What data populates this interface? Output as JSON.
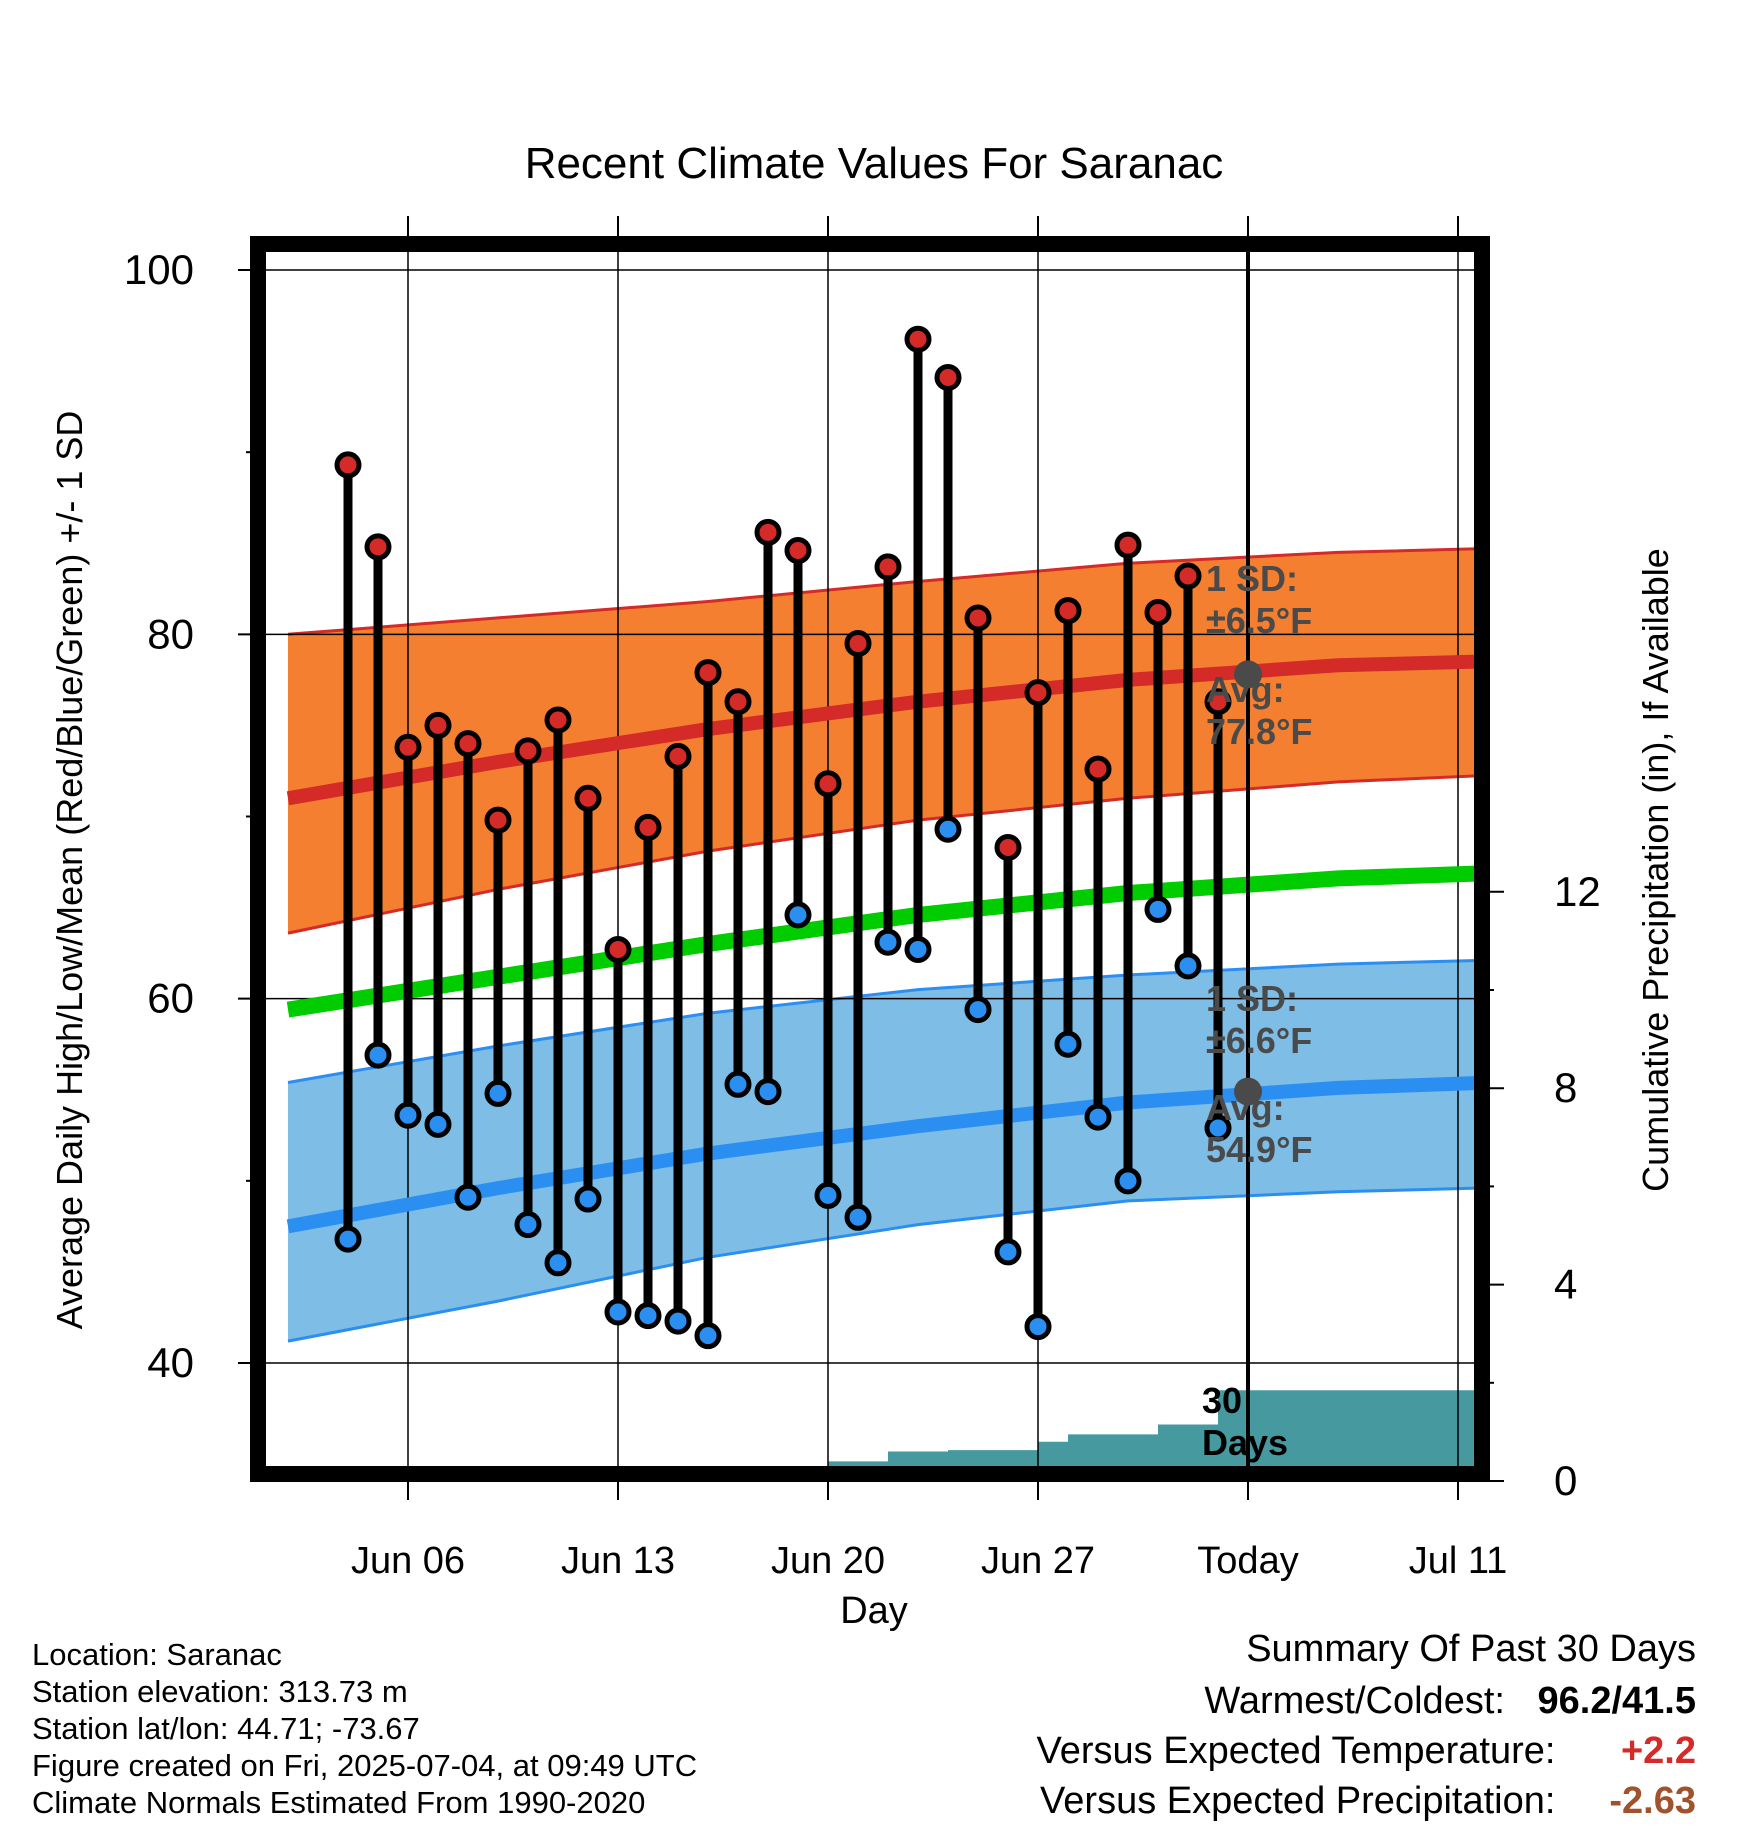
{
  "chart_data": {
    "type": "line",
    "title": "Recent Climate Values For Saranac",
    "xlabel": "Day",
    "ylabel": "Average Daily High/Low/Mean (Red/Blue/Green) +/- 1 SD",
    "y2label": "Cumulative Precipitation (in), If Available",
    "ylim": [
      33,
      102
    ],
    "y2lim": [
      0,
      24.4
    ],
    "yticks": [
      "100",
      "80",
      "60",
      "40"
    ],
    "y2ticks": [
      "12",
      "8",
      "4",
      "0"
    ],
    "xticks": [
      "Jun 06",
      "Jun 13",
      "Jun 20",
      "Jun 27",
      "Today",
      "Jul 11"
    ],
    "x_dates": [
      "2025-06-02",
      "2025-07-14"
    ],
    "today": "2025-07-04",
    "grid": true,
    "observed": {
      "dates": [
        "2025-06-04",
        "2025-06-05",
        "2025-06-06",
        "2025-06-07",
        "2025-06-08",
        "2025-06-09",
        "2025-06-10",
        "2025-06-11",
        "2025-06-12",
        "2025-06-13",
        "2025-06-14",
        "2025-06-15",
        "2025-06-16",
        "2025-06-17",
        "2025-06-18",
        "2025-06-19",
        "2025-06-20",
        "2025-06-21",
        "2025-06-22",
        "2025-06-23",
        "2025-06-24",
        "2025-06-25",
        "2025-06-26",
        "2025-06-27",
        "2025-06-28",
        "2025-06-29",
        "2025-06-30",
        "2025-07-01",
        "2025-07-02",
        "2025-07-03"
      ],
      "high": [
        89.3,
        84.8,
        73.8,
        75.0,
        74.0,
        69.8,
        73.6,
        75.3,
        71.0,
        62.7,
        69.4,
        73.3,
        77.9,
        76.3,
        85.6,
        84.6,
        71.8,
        79.5,
        83.7,
        96.2,
        94.1,
        80.9,
        68.3,
        76.8,
        81.3,
        72.6,
        84.9,
        81.2,
        83.2,
        76.3
      ],
      "low": [
        46.8,
        56.9,
        53.6,
        53.1,
        49.1,
        54.8,
        47.6,
        45.5,
        49.0,
        42.8,
        42.6,
        42.3,
        41.5,
        55.3,
        54.9,
        64.6,
        49.2,
        48.0,
        63.1,
        62.7,
        69.3,
        59.4,
        46.1,
        42.0,
        57.5,
        53.5,
        50.0,
        64.9,
        61.8,
        52.9
      ]
    },
    "normals": {
      "dates": [
        "2025-06-02",
        "2025-06-09",
        "2025-06-16",
        "2025-06-23",
        "2025-06-30",
        "2025-07-07",
        "2025-07-14"
      ],
      "high_avg": [
        71.0,
        73.0,
        74.8,
        76.3,
        77.5,
        78.3,
        78.6
      ],
      "high_sd_upper": [
        80.0,
        80.9,
        81.8,
        82.9,
        83.9,
        84.5,
        84.8
      ],
      "high_sd_lower": [
        63.6,
        66.0,
        68.1,
        69.8,
        71.0,
        71.9,
        72.4
      ],
      "mean": [
        59.4,
        61.2,
        63.0,
        64.6,
        65.8,
        66.6,
        67.0
      ],
      "low_avg": [
        47.5,
        49.6,
        51.5,
        53.0,
        54.3,
        55.1,
        55.5
      ],
      "low_sd_upper": [
        55.4,
        57.4,
        59.2,
        60.5,
        61.3,
        61.9,
        62.2
      ],
      "low_sd_lower": [
        41.2,
        43.4,
        45.8,
        47.6,
        48.9,
        49.4,
        49.7
      ]
    },
    "precipitation": {
      "dates": [
        "2025-06-02",
        "2025-06-09",
        "2025-06-10",
        "2025-06-12",
        "2025-06-19",
        "2025-06-20",
        "2025-06-21",
        "2025-06-22",
        "2025-06-23",
        "2025-06-24",
        "2025-06-26",
        "2025-06-27",
        "2025-06-28",
        "2025-06-30",
        "2025-07-01",
        "2025-07-02",
        "2025-07-03",
        "2025-07-14"
      ],
      "cumulative": [
        0.0,
        0.0,
        0.1,
        0.15,
        0.15,
        0.4,
        0.4,
        0.6,
        0.6,
        0.63,
        0.63,
        0.8,
        0.95,
        0.95,
        1.15,
        1.15,
        1.85,
        1.85
      ]
    },
    "high_sd_label": "1 SD:\n±6.5°F",
    "high_avg_label": "Avg:\n77.8°F",
    "low_sd_label": "1 SD:\n±6.6°F",
    "low_avg_label": "Avg:\n54.9°F",
    "precip_label": "30\nDays",
    "colors": {
      "high": "#d42a28",
      "high_band": "#f47f30",
      "low": "#2b8ff2",
      "low_band": "#7dbde6",
      "mean": "#00cc00",
      "precip": "#46999f",
      "annotation": "#4a4a4a"
    }
  },
  "info": {
    "location": "Location: Saranac",
    "elevation": "Station elevation: 313.73 m",
    "latlon": "Station lat/lon: 44.71; -73.67",
    "created": "Figure created on Fri, 2025-07-04, at 09:49 UTC",
    "normals": "Climate Normals Estimated From 1990-2020"
  },
  "summary": {
    "title": "Summary Of Past 30 Days",
    "warm_cold_label": "Warmest/Coldest:",
    "warm_cold_value": "96.2/41.5",
    "temp_label": "Versus Expected Temperature:",
    "temp_value": "+2.2",
    "temp_color": "#d42a28",
    "precip_label": "Versus Expected Precipitation:",
    "precip_value": "-2.63",
    "precip_color": "#a0522d"
  }
}
